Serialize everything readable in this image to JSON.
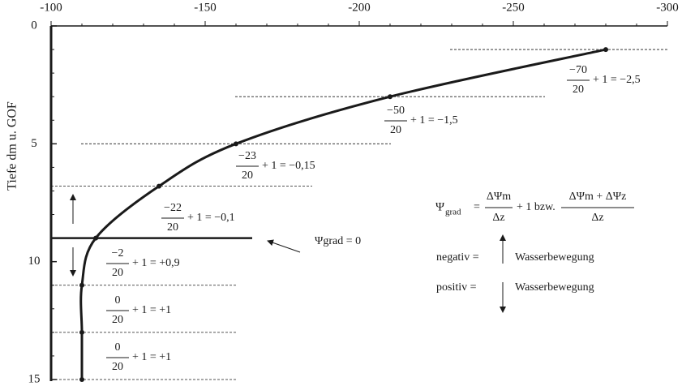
{
  "chart_data": {
    "type": "line",
    "ylabel": "Tiefe dm u. GOF",
    "xlim": [
      -100,
      -300
    ],
    "ylim": [
      0,
      15
    ],
    "xticks": [
      -100,
      -150,
      -200,
      -250,
      -300
    ],
    "yticks": [
      0,
      5,
      10,
      15
    ],
    "xminorticks": [
      -110,
      -120,
      -130,
      -140,
      -160,
      -170,
      -180,
      -190,
      -210,
      -220,
      -230,
      -240,
      -260,
      -270,
      -280,
      -290
    ],
    "yminorticks": [
      1,
      2,
      3,
      4,
      6,
      7,
      8,
      9,
      11,
      12,
      13,
      14
    ],
    "color": "#1a1a1a",
    "series": [
      {
        "x": [
          -280,
          -210,
          -160,
          -135,
          -114.5,
          -110,
          -110,
          -110
        ],
        "values": [
          1,
          3,
          5,
          6.8,
          9,
          11,
          13,
          15
        ]
      }
    ],
    "annotations": [
      {
        "numerator": "−70",
        "denominator": "20",
        "text": "+ 1 = −2,5"
      },
      {
        "numerator": "−50",
        "denominator": "20",
        "text": "+ 1 = −1,5"
      },
      {
        "numerator": "−23",
        "denominator": "20",
        "text": "+ 1 = −0,15"
      },
      {
        "numerator": "−22",
        "denominator": "20",
        "text": "+ 1 = −0,1"
      },
      {
        "numerator": "−2",
        "denominator": "20",
        "text": "+ 1 = +0,9"
      },
      {
        "numerator": "0",
        "denominator": "20",
        "text": "+ 1 = +1"
      },
      {
        "numerator": "0",
        "denominator": "20",
        "text": "+ 1 = +1"
      }
    ],
    "zero_label": "Ψgrad = 0",
    "formula": {
      "symbol": "Ψ",
      "subscript": "grad",
      "equals": "=",
      "frac1_num": "ΔΨm",
      "frac1_den": "Δz",
      "middle": "+ 1 bzw.",
      "frac2_num": "ΔΨm + ΔΨz",
      "frac2_den": "Δz"
    },
    "legend": [
      {
        "label": "negativ =",
        "text": "Wasserbewegung"
      },
      {
        "label": "positiv =",
        "text": "Wasserbewegung"
      }
    ]
  }
}
